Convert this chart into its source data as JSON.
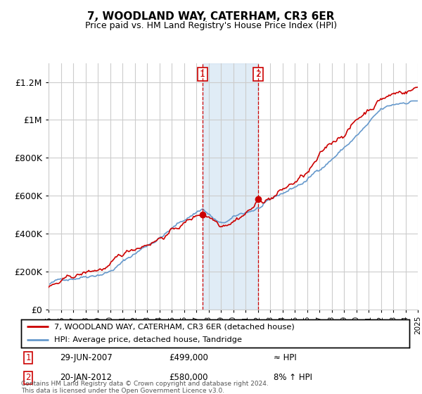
{
  "title": "7, WOODLAND WAY, CATERHAM, CR3 6ER",
  "subtitle": "Price paid vs. HM Land Registry's House Price Index (HPI)",
  "red_label": "7, WOODLAND WAY, CATERHAM, CR3 6ER (detached house)",
  "blue_label": "HPI: Average price, detached house, Tandridge",
  "annotation1_date": "29-JUN-2007",
  "annotation1_price": "£499,000",
  "annotation1_hpi": "≈ HPI",
  "annotation1_year": 2007.49,
  "annotation1_value": 499000,
  "annotation2_date": "20-JAN-2012",
  "annotation2_price": "£580,000",
  "annotation2_hpi": "8% ↑ HPI",
  "annotation2_year": 2012.05,
  "annotation2_value": 580000,
  "xmin": 1995,
  "xmax": 2025,
  "ymin": 0,
  "ymax": 1300000,
  "yticks": [
    0,
    200000,
    400000,
    600000,
    800000,
    1000000,
    1200000
  ],
  "ytick_labels": [
    "£0",
    "£200K",
    "£400K",
    "£600K",
    "£800K",
    "£1M",
    "£1.2M"
  ],
  "footer": "Contains HM Land Registry data © Crown copyright and database right 2024.\nThis data is licensed under the Open Government Licence v3.0.",
  "red_color": "#cc0000",
  "blue_color": "#6699cc",
  "shade_color": "#cce0f0",
  "annotation_line_color": "#cc0000",
  "bg_color": "#ffffff",
  "grid_color": "#cccccc"
}
